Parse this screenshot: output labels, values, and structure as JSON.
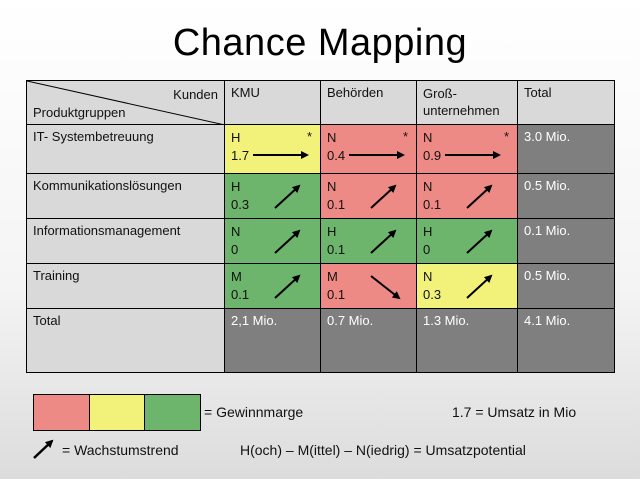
{
  "title": "Chance Mapping",
  "corner": {
    "top": "Kunden",
    "bottom": "Produktgruppen"
  },
  "columns": [
    "KMU",
    "Behörden",
    "Groß-\nunternehmen",
    "Total"
  ],
  "rows": [
    {
      "label": "IT- Systembetreuung",
      "cells": [
        {
          "potential": "H",
          "value": "1.7",
          "color": "#f2f27a",
          "star": "*",
          "trend": "flat"
        },
        {
          "potential": "N",
          "value": "0.4",
          "color": "#ee8a86",
          "star": "*",
          "trend": "flat"
        },
        {
          "potential": "N",
          "value": "0.9",
          "color": "#ee8a86",
          "star": "*",
          "trend": "flat"
        }
      ],
      "total": "3.0 Mio."
    },
    {
      "label": "Kommunikationslösungen",
      "cells": [
        {
          "potential": "H",
          "value": "0.3",
          "color": "#6db46d",
          "star": "",
          "trend": "up"
        },
        {
          "potential": "N",
          "value": "0.1",
          "color": "#ee8a86",
          "star": "",
          "trend": "up"
        },
        {
          "potential": "N",
          "value": "0.1",
          "color": "#ee8a86",
          "star": "",
          "trend": "up"
        }
      ],
      "total": "0.5 Mio."
    },
    {
      "label": "Informationsmanagement",
      "cells": [
        {
          "potential": "N",
          "value": "0",
          "color": "#6db46d",
          "star": "",
          "trend": "up"
        },
        {
          "potential": "H",
          "value": "0.1",
          "color": "#6db46d",
          "star": "",
          "trend": "up"
        },
        {
          "potential": "H",
          "value": "0",
          "color": "#6db46d",
          "star": "",
          "trend": "up"
        }
      ],
      "total": "0.1 Mio."
    },
    {
      "label": "Training",
      "cells": [
        {
          "potential": "M",
          "value": "0.1",
          "color": "#6db46d",
          "star": "",
          "trend": "up"
        },
        {
          "potential": "M",
          "value": "0.1",
          "color": "#ee8a86",
          "star": "",
          "trend": "down"
        },
        {
          "potential": "N",
          "value": "0.3",
          "color": "#f2f27a",
          "star": "",
          "trend": "up"
        }
      ],
      "total": "0.5 Mio."
    }
  ],
  "total_row": {
    "label": "Total",
    "values": [
      "2,1 Mio.",
      "0.7 Mio.",
      "1.3 Mio.",
      "4.1 Mio."
    ]
  },
  "legend": {
    "colors": [
      "#ee8a86",
      "#f2f27a",
      "#6db46d"
    ],
    "margin_label": "= Gewinnmarge",
    "umsatz_label": "1.7 = Umsatz in Mio",
    "trend_label": "= Wachstumstrend",
    "potential_label": "H(och) – M(ittel) – N(iedrig) = Umsatzpotential"
  }
}
